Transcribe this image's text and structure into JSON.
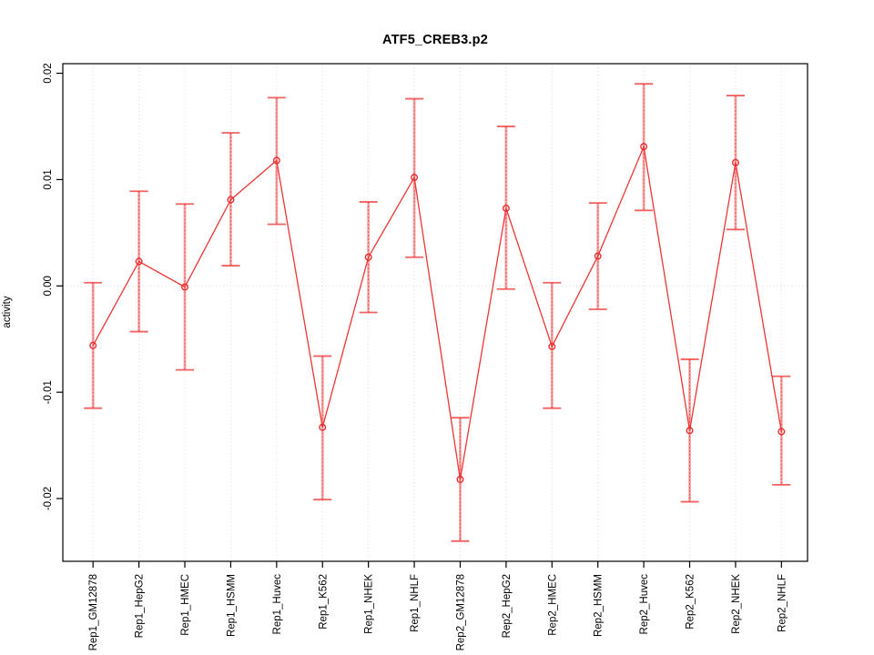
{
  "page": {
    "background": "#ffffff"
  },
  "chart_data": {
    "type": "line",
    "title": "ATF5_CREB3.p2",
    "xlabel": "",
    "ylabel": "activity",
    "legend_position": "none",
    "categories": [
      "Rep1_GM12878",
      "Rep1_HepG2",
      "Rep1_HMEC",
      "Rep1_HSMM",
      "Rep1_Huvec",
      "Rep1_K562",
      "Rep1_NHEK",
      "Rep1_NHLF",
      "Rep2_GM12878",
      "Rep2_HepG2",
      "Rep2_HMEC",
      "Rep2_HSMM",
      "Rep2_Huvec",
      "Rep2_K562",
      "Rep2_NHEK",
      "Rep2_NHLF"
    ],
    "series": [
      {
        "name": "activity",
        "values": [
          -0.0056,
          0.0023,
          -0.0001,
          0.0081,
          0.0118,
          -0.0133,
          0.0027,
          0.0102,
          -0.0182,
          0.0073,
          -0.0057,
          0.0028,
          0.0131,
          -0.0136,
          0.0116,
          -0.0137
        ],
        "error_low": [
          -0.0115,
          -0.0043,
          -0.0079,
          0.0019,
          0.0058,
          -0.0201,
          -0.0025,
          0.0027,
          -0.024,
          -0.0003,
          -0.0115,
          -0.0022,
          0.0071,
          -0.0203,
          0.0053,
          -0.0187
        ],
        "error_high": [
          0.0003,
          0.0089,
          0.0077,
          0.0144,
          0.0177,
          -0.0066,
          0.0079,
          0.0176,
          -0.0124,
          0.015,
          0.0003,
          0.0078,
          0.019,
          -0.0069,
          0.0179,
          -0.0085
        ]
      }
    ],
    "ylim": [
      -0.0259,
      0.0209
    ],
    "yticks": [
      -0.02,
      -0.01,
      0,
      0.01,
      0.02
    ],
    "ytick_labels": [
      "-0.02",
      "-0.01",
      "0.00",
      "0.01",
      "0.02"
    ],
    "grid": {
      "vertical_at_categories": true,
      "horizontal_at_zero": true,
      "line_style": "dotted",
      "color": "#d9d9d9"
    },
    "colors": {
      "line": "#ee3535",
      "point": "#e83030",
      "error_bar": "rgba(242,80,80,0.50)",
      "error_bar_center": "#ef4040",
      "error_cap": "rgba(240,70,70,0.85)",
      "axis": "#000000",
      "tick_text": "#000000"
    }
  }
}
